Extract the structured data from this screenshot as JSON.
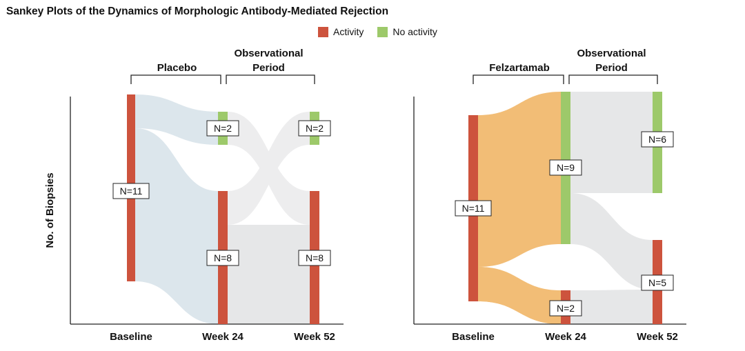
{
  "title": "Sankey Plots of the Dynamics of Morphologic Antibody-Mediated Rejection",
  "legend": [
    {
      "label": "Activity",
      "color": "#cd533d"
    },
    {
      "label": "No activity",
      "color": "#9dc96a"
    }
  ],
  "ylabel": "No. of Biopsies",
  "colors": {
    "activity": "#cd533d",
    "no_activity": "#9dc96a",
    "placebo_flow": "#dce6ec",
    "felzartamab_flow": "#f2bd76",
    "observational_flow": "#e6e7e8",
    "observational_flow_light": "#ededee"
  },
  "chart_data": [
    {
      "type": "sankey",
      "group_label": "Placebo",
      "period_label": "Observational Period",
      "stages": [
        "Baseline",
        "Week 24",
        "Week 52"
      ],
      "nodes": [
        {
          "stage": "Baseline",
          "state": "Activity",
          "n": 11,
          "label": "N=11"
        },
        {
          "stage": "Week 24",
          "state": "No activity",
          "n": 2,
          "label": "N=2"
        },
        {
          "stage": "Week 24",
          "state": "Activity",
          "n": 8,
          "label": "N=8"
        },
        {
          "stage": "Week 52",
          "state": "No activity",
          "n": 2,
          "label": "N=2"
        },
        {
          "stage": "Week 52",
          "state": "Activity",
          "n": 8,
          "label": "N=8"
        }
      ],
      "flows": [
        {
          "from": "Baseline Activity",
          "to": "Week 24 No activity",
          "value": 2
        },
        {
          "from": "Baseline Activity",
          "to": "Week 24 Activity",
          "value": 8
        },
        {
          "from": "Week 24 No activity",
          "to": "Week 52 Activity",
          "value": 2
        },
        {
          "from": "Week 24 Activity",
          "to": "Week 52 No activity",
          "value": 2
        },
        {
          "from": "Week 24 Activity",
          "to": "Week 52 Activity",
          "value": 6
        }
      ]
    },
    {
      "type": "sankey",
      "group_label": "Felzartamab",
      "period_label": "Observational Period",
      "stages": [
        "Baseline",
        "Week 24",
        "Week 52"
      ],
      "nodes": [
        {
          "stage": "Baseline",
          "state": "Activity",
          "n": 11,
          "label": "N=11"
        },
        {
          "stage": "Week 24",
          "state": "No activity",
          "n": 9,
          "label": "N=9"
        },
        {
          "stage": "Week 24",
          "state": "Activity",
          "n": 2,
          "label": "N=2"
        },
        {
          "stage": "Week 52",
          "state": "No activity",
          "n": 6,
          "label": "N=6"
        },
        {
          "stage": "Week 52",
          "state": "Activity",
          "n": 5,
          "label": "N=5"
        }
      ],
      "flows": [
        {
          "from": "Baseline Activity",
          "to": "Week 24 No activity",
          "value": 9
        },
        {
          "from": "Baseline Activity",
          "to": "Week 24 Activity",
          "value": 2
        },
        {
          "from": "Week 24 No activity",
          "to": "Week 52 No activity",
          "value": 6
        },
        {
          "from": "Week 24 No activity",
          "to": "Week 52 Activity",
          "value": 3
        },
        {
          "from": "Week 24 Activity",
          "to": "Week 52 Activity",
          "value": 2
        }
      ]
    }
  ]
}
